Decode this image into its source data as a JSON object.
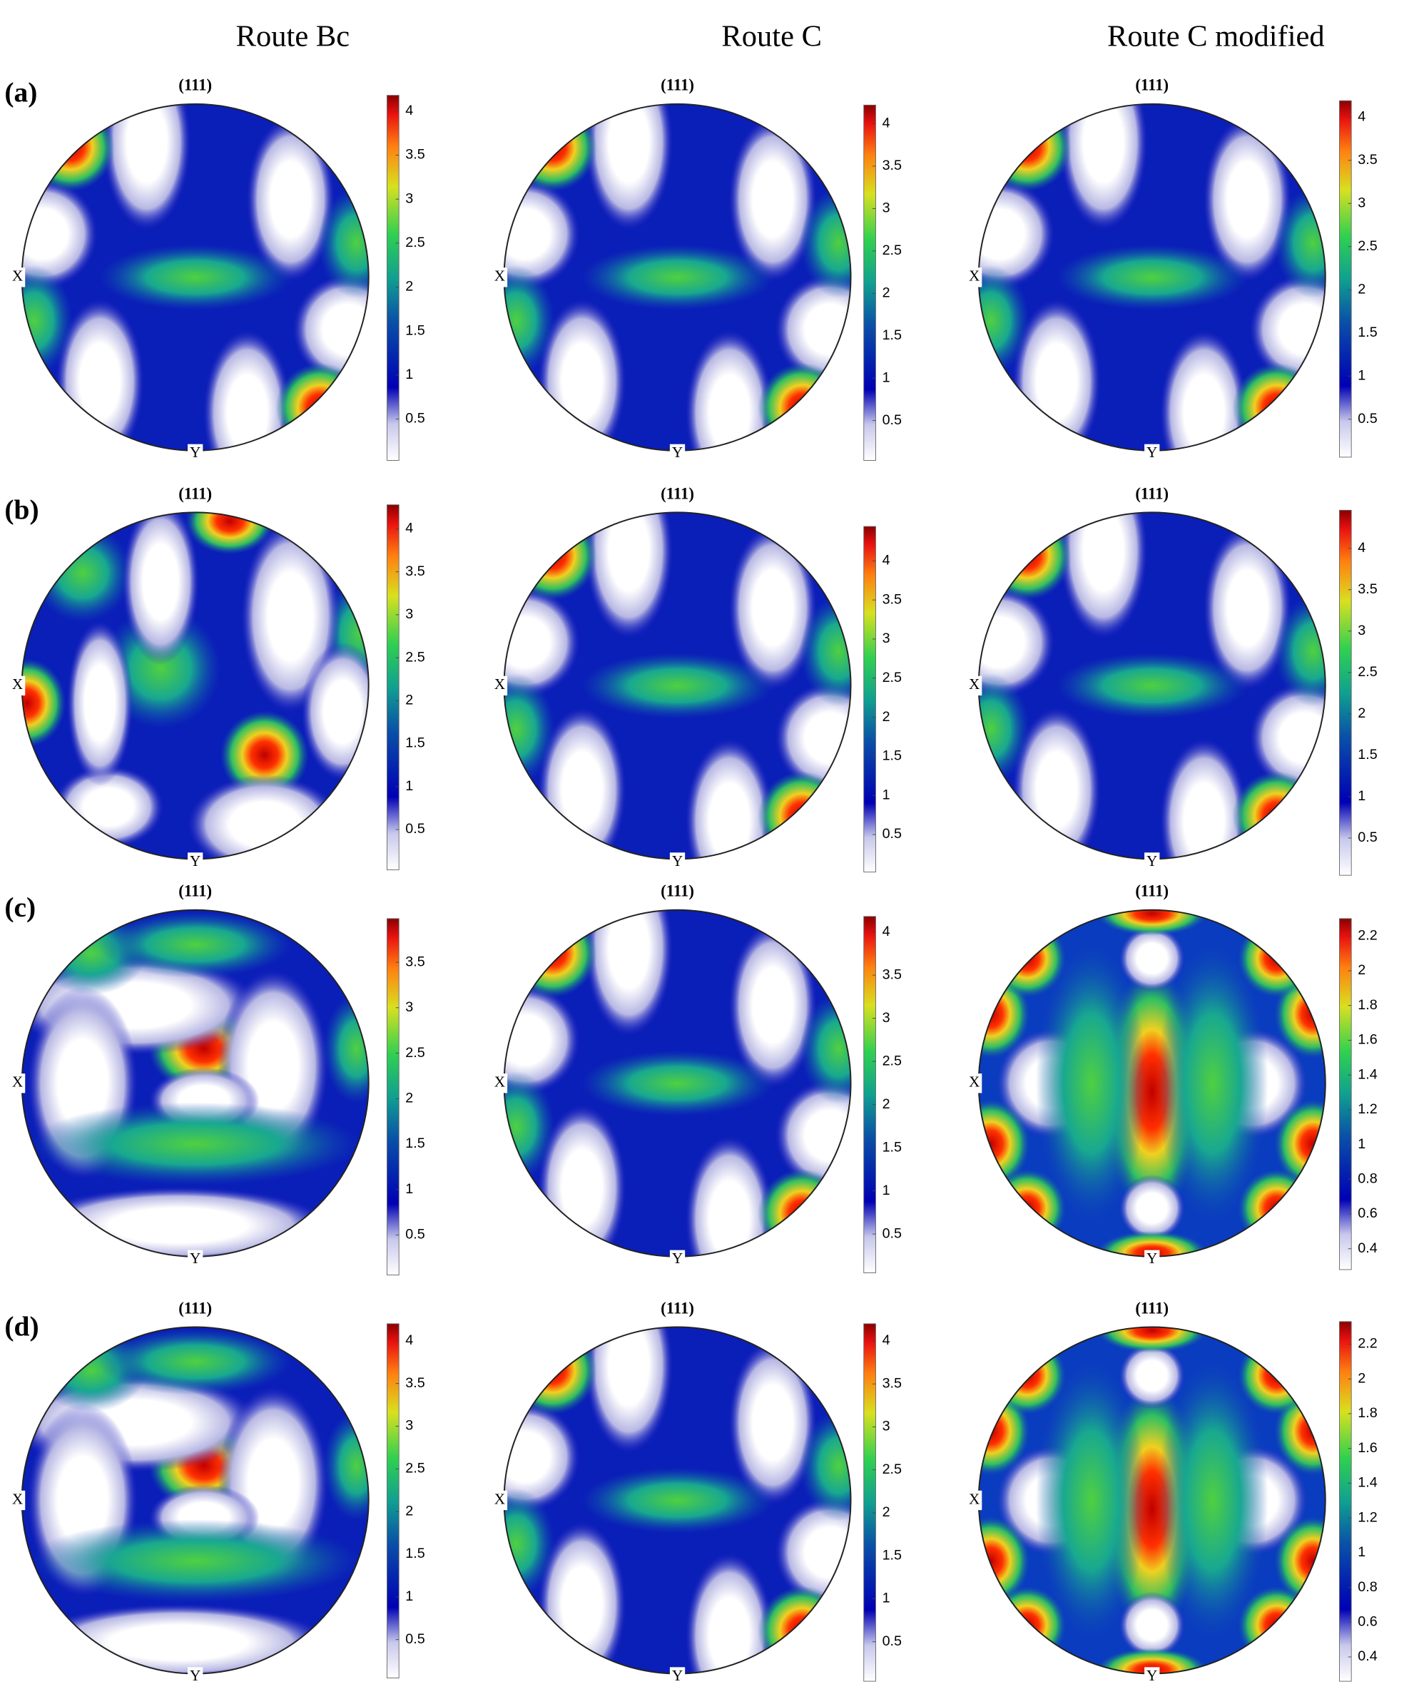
{
  "column_titles": [
    "Route Bc",
    "Route C",
    "Route C modified"
  ],
  "rows": [
    {
      "label": "(a)",
      "panels": [
        {
          "pole": "(111)",
          "x_label": "X",
          "y_label": "Y",
          "colorbar": {
            "lim": [
              0.03,
              4.18
            ],
            "ticks": [
              0.5,
              1,
              1.5,
              2,
              2.5,
              3,
              3.5,
              4
            ]
          }
        },
        {
          "pole": "(111)",
          "x_label": "X",
          "y_label": "Y",
          "colorbar": {
            "lim": [
              0.03,
              4.22
            ],
            "ticks": [
              0.5,
              1,
              1.5,
              2,
              2.5,
              3,
              3.5,
              4
            ]
          }
        },
        {
          "pole": "(111)",
          "x_label": "X",
          "y_label": "Y",
          "colorbar": {
            "lim": [
              0.06,
              4.19
            ],
            "ticks": [
              0.5,
              1,
              1.5,
              2,
              2.5,
              3,
              3.5,
              4
            ]
          }
        }
      ]
    },
    {
      "label": "(b)",
      "panels": [
        {
          "pole": "(111)",
          "x_label": "X",
          "y_label": "Y",
          "colorbar": {
            "lim": [
              0.03,
              4.28
            ],
            "ticks": [
              0.5,
              1,
              1.5,
              2,
              2.5,
              3,
              3.5,
              4
            ]
          }
        },
        {
          "pole": "(111)",
          "x_label": "X",
          "y_label": "Y",
          "colorbar": {
            "lim": [
              0.02,
              4.44
            ],
            "ticks": [
              0.5,
              1,
              1.5,
              2,
              2.5,
              3,
              3.5,
              4
            ]
          }
        },
        {
          "pole": "(111)",
          "x_label": "X",
          "y_label": "Y",
          "colorbar": {
            "lim": [
              0.05,
              4.46
            ],
            "ticks": [
              0.5,
              1,
              1.5,
              2,
              2.5,
              3,
              3.5,
              4
            ]
          }
        }
      ]
    },
    {
      "label": "(c)",
      "panels": [
        {
          "pole": "(111)",
          "x_label": "X",
          "y_label": "Y",
          "colorbar": {
            "lim": [
              0.06,
              3.98
            ],
            "ticks": [
              0.5,
              1,
              1.5,
              2,
              2.5,
              3,
              3.5
            ]
          }
        },
        {
          "pole": "(111)",
          "x_label": "X",
          "y_label": "Y",
          "colorbar": {
            "lim": [
              0.05,
              4.18
            ],
            "ticks": [
              0.5,
              1,
              1.5,
              2,
              2.5,
              3,
              3.5,
              4
            ]
          }
        },
        {
          "pole": "(111)",
          "x_label": "X",
          "y_label": "Y",
          "colorbar": {
            "lim": [
              0.28,
              2.3
            ],
            "ticks": [
              0.4,
              0.6,
              0.8,
              1,
              1.2,
              1.4,
              1.6,
              1.8,
              2,
              2.2
            ]
          }
        }
      ]
    },
    {
      "label": "(d)",
      "panels": [
        {
          "pole": "(111)",
          "x_label": "X",
          "y_label": "Y",
          "colorbar": {
            "lim": [
              0.05,
              4.2
            ],
            "ticks": [
              0.5,
              1,
              1.5,
              2,
              2.5,
              3,
              3.5,
              4
            ]
          }
        },
        {
          "pole": "(111)",
          "x_label": "X",
          "y_label": "Y",
          "colorbar": {
            "lim": [
              0.04,
              4.2
            ],
            "ticks": [
              0.5,
              1,
              1.5,
              2,
              2.5,
              3,
              3.5,
              4
            ]
          }
        },
        {
          "pole": "(111)",
          "x_label": "X",
          "y_label": "Y",
          "colorbar": {
            "lim": [
              0.26,
              2.33
            ],
            "ticks": [
              0.4,
              0.6,
              0.8,
              1,
              1.2,
              1.4,
              1.6,
              1.8,
              2,
              2.2
            ]
          }
        }
      ]
    }
  ]
}
